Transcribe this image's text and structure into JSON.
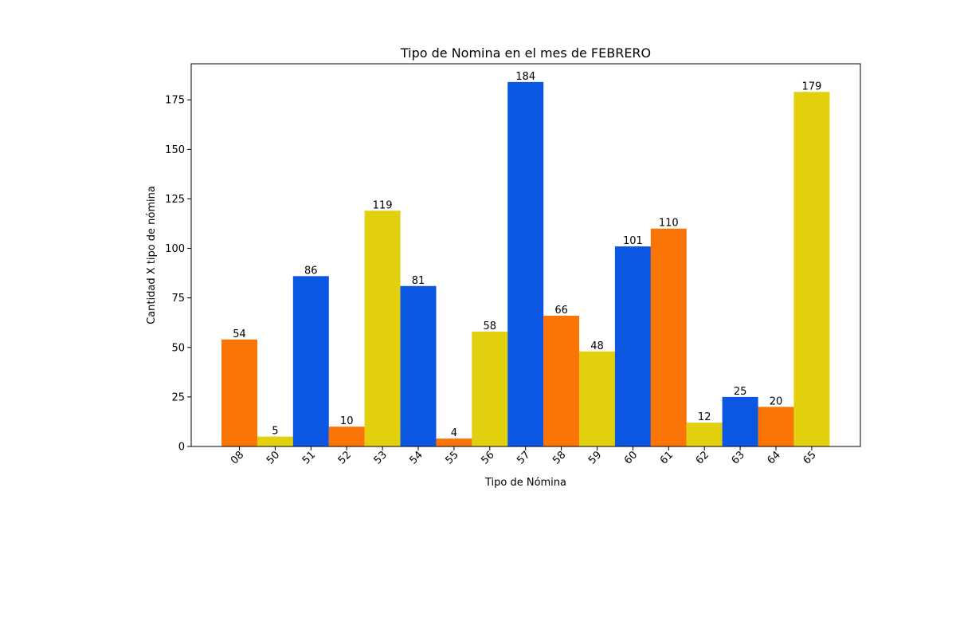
{
  "chart_data": {
    "type": "bar",
    "title": "Tipo de Nomina en el mes de FEBRERO",
    "xlabel": "Tipo de Nómina",
    "ylabel": "Cantidad X tipo de nómina",
    "categories": [
      "08",
      "50",
      "51",
      "52",
      "53",
      "54",
      "55",
      "56",
      "57",
      "58",
      "59",
      "60",
      "61",
      "62",
      "63",
      "64",
      "65"
    ],
    "values": [
      54,
      5,
      86,
      10,
      119,
      81,
      4,
      58,
      184,
      66,
      48,
      101,
      110,
      12,
      25,
      20,
      179
    ],
    "bar_colors": [
      "#fb7506",
      "#e2cf0d",
      "#0c57e2",
      "#fb7506",
      "#e2cf0d",
      "#0c57e2",
      "#fb7506",
      "#e2cf0d",
      "#0c57e2",
      "#fb7506",
      "#e2cf0d",
      "#0c57e2",
      "#fb7506",
      "#e2cf0d",
      "#0c57e2",
      "#fb7506",
      "#e2cf0d"
    ],
    "ylim": [
      0,
      193.2
    ],
    "yticks": [
      0,
      25,
      50,
      75,
      100,
      125,
      150,
      175
    ],
    "grid": false,
    "legend": false
  }
}
